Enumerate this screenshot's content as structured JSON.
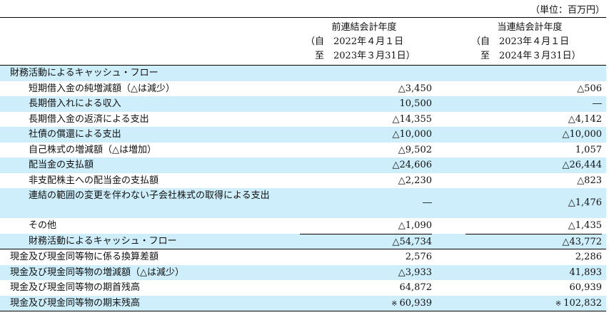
{
  "unit_label": "（単位：百万円）",
  "header": {
    "prev": {
      "title": "前連結会計年度",
      "from": "（自　2022年４月１日",
      "to": "　至　2023年３月31日）"
    },
    "curr": {
      "title": "当連結会計年度",
      "from": "（自　2023年４月１日",
      "to": "　至　2024年３月31日）"
    }
  },
  "section_title": "財務活動によるキャッシュ・フロー",
  "rows": [
    {
      "label": "短期借入金の純増減額（△は減少）",
      "prev": "△3,450",
      "curr": "△506"
    },
    {
      "label": "長期借入れによる収入",
      "prev": "10,500",
      "curr": "―"
    },
    {
      "label": "長期借入金の返済による支出",
      "prev": "△14,355",
      "curr": "△4,142"
    },
    {
      "label": "社債の償還による支出",
      "prev": "△10,000",
      "curr": "△10,000"
    },
    {
      "label": "自己株式の増減額（△は増加）",
      "prev": "△9,502",
      "curr": "1,057"
    },
    {
      "label": "配当金の支払額",
      "prev": "△24,606",
      "curr": "△26,444"
    },
    {
      "label": "非支配株主への配当金の支払額",
      "prev": "△2,230",
      "curr": "△823"
    },
    {
      "label": "連結の範囲の変更を伴わない子会社株式の取得による支出",
      "prev": "―",
      "curr": "△1,476"
    },
    {
      "label": "その他",
      "prev": "△1,090",
      "curr": "△1,435"
    }
  ],
  "subtotal": {
    "label": "財務活動によるキャッシュ・フロー",
    "prev": "△54,734",
    "curr": "△43,772"
  },
  "totals": [
    {
      "label": "現金及び現金同等物に係る換算差額",
      "prev": "2,576",
      "curr": "2,286"
    },
    {
      "label": "現金及び現金同等物の増減額（△は減少）",
      "prev": "△3,933",
      "curr": "41,893"
    },
    {
      "label": "現金及び現金同等物の期首残高",
      "prev": "64,872",
      "curr": "60,939"
    },
    {
      "label": "現金及び現金同等物の期末残高",
      "prev": "60,939",
      "curr": "102,832",
      "mark": "※"
    }
  ]
}
